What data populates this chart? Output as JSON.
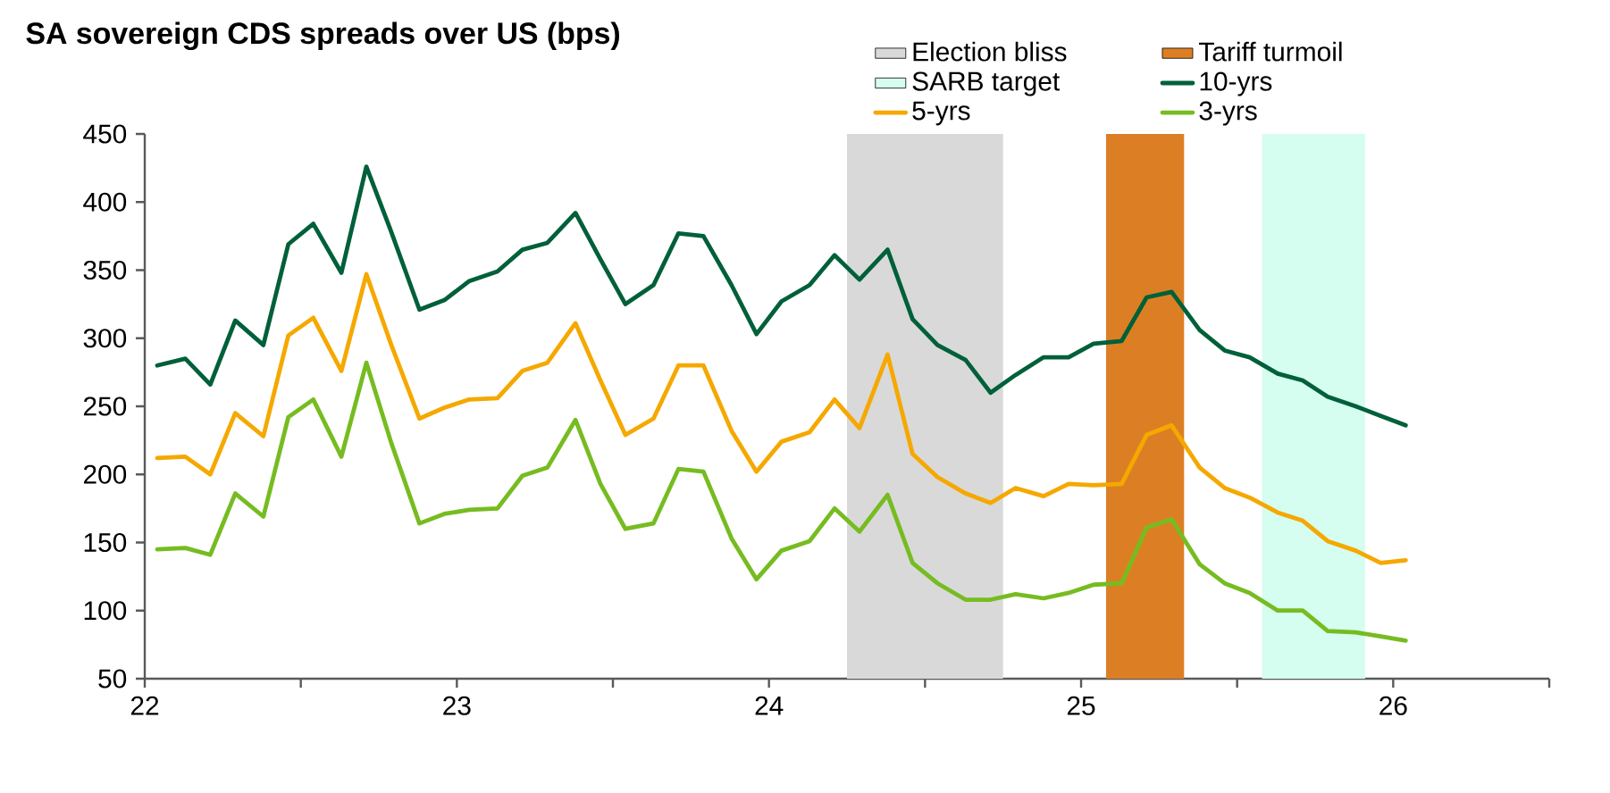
{
  "chart_data": {
    "type": "line",
    "title": "SA sovereign CDS spreads over US (bps)",
    "x": [
      22.04,
      22.13,
      22.21,
      22.29,
      22.38,
      22.46,
      22.54,
      22.63,
      22.71,
      22.79,
      22.88,
      22.96,
      23.04,
      23.13,
      23.21,
      23.29,
      23.38,
      23.46,
      23.54,
      23.63,
      23.71,
      23.79,
      23.88,
      23.96,
      24.04,
      24.13,
      24.21,
      24.29,
      24.38,
      24.46,
      24.54,
      24.63,
      24.71,
      24.79,
      24.88,
      24.96,
      25.04,
      25.13,
      25.21,
      25.29,
      25.38,
      25.46,
      25.54,
      25.63,
      25.71,
      25.79,
      25.88,
      25.96,
      26.04
    ],
    "series": [
      {
        "name": "10-yrs",
        "color": "#006039",
        "values": [
          280,
          285,
          266,
          313,
          295,
          369,
          384,
          348,
          426,
          378,
          321,
          328,
          342,
          349,
          365,
          370,
          392,
          358,
          325,
          339,
          377,
          375,
          339,
          303,
          327,
          339,
          361,
          343,
          365,
          314,
          295,
          284,
          260,
          273,
          286,
          286,
          296,
          298,
          330,
          334,
          306,
          291,
          286,
          274,
          269,
          257,
          250,
          243,
          236
        ]
      },
      {
        "name": "5-yrs",
        "color": "#f5a800",
        "values": [
          212,
          213,
          200,
          245,
          228,
          302,
          315,
          276,
          347,
          295,
          241,
          249,
          255,
          256,
          276,
          282,
          311,
          269,
          229,
          241,
          280,
          280,
          232,
          202,
          224,
          231,
          255,
          234,
          288,
          215,
          198,
          186,
          179,
          190,
          184,
          193,
          192,
          193,
          229,
          236,
          205,
          190,
          183,
          172,
          166,
          151,
          144,
          135,
          137
        ]
      },
      {
        "name": "3-yrs",
        "color": "#76bc21",
        "values": [
          145,
          146,
          141,
          186,
          169,
          242,
          255,
          213,
          282,
          223,
          164,
          171,
          174,
          175,
          199,
          205,
          240,
          193,
          160,
          164,
          204,
          202,
          153,
          123,
          144,
          151,
          175,
          158,
          185,
          135,
          120,
          108,
          108,
          112,
          109,
          113,
          119,
          120,
          161,
          167,
          134,
          120,
          113,
          100,
          100,
          85,
          84,
          81,
          78
        ]
      }
    ],
    "bands": [
      {
        "axis": "x",
        "from": 24.25,
        "to": 24.75,
        "label": "Election bliss",
        "color": "#d9d9d9"
      },
      {
        "axis": "x",
        "from": 25.08,
        "to": 25.33,
        "label": "Tariff turmoil",
        "color": "#dc7f24"
      },
      {
        "axis": "x",
        "from": 25.58,
        "to": 25.91,
        "label": "SARB target",
        "color": "#d5fdf0"
      }
    ],
    "xlim": [
      22,
      26.5
    ],
    "xticks": [
      22,
      {
        "value": 22.5,
        "label": null
      },
      23,
      {
        "value": 23.5,
        "label": null
      },
      24,
      {
        "value": 24.5,
        "label": null
      },
      25,
      {
        "value": 25.5,
        "label": null
      },
      26,
      {
        "value": 26.5,
        "label": null
      }
    ],
    "ylim": [
      50,
      450
    ],
    "yticks": [
      50,
      100,
      150,
      200,
      250,
      300,
      350,
      400,
      450
    ],
    "legend": "top"
  }
}
